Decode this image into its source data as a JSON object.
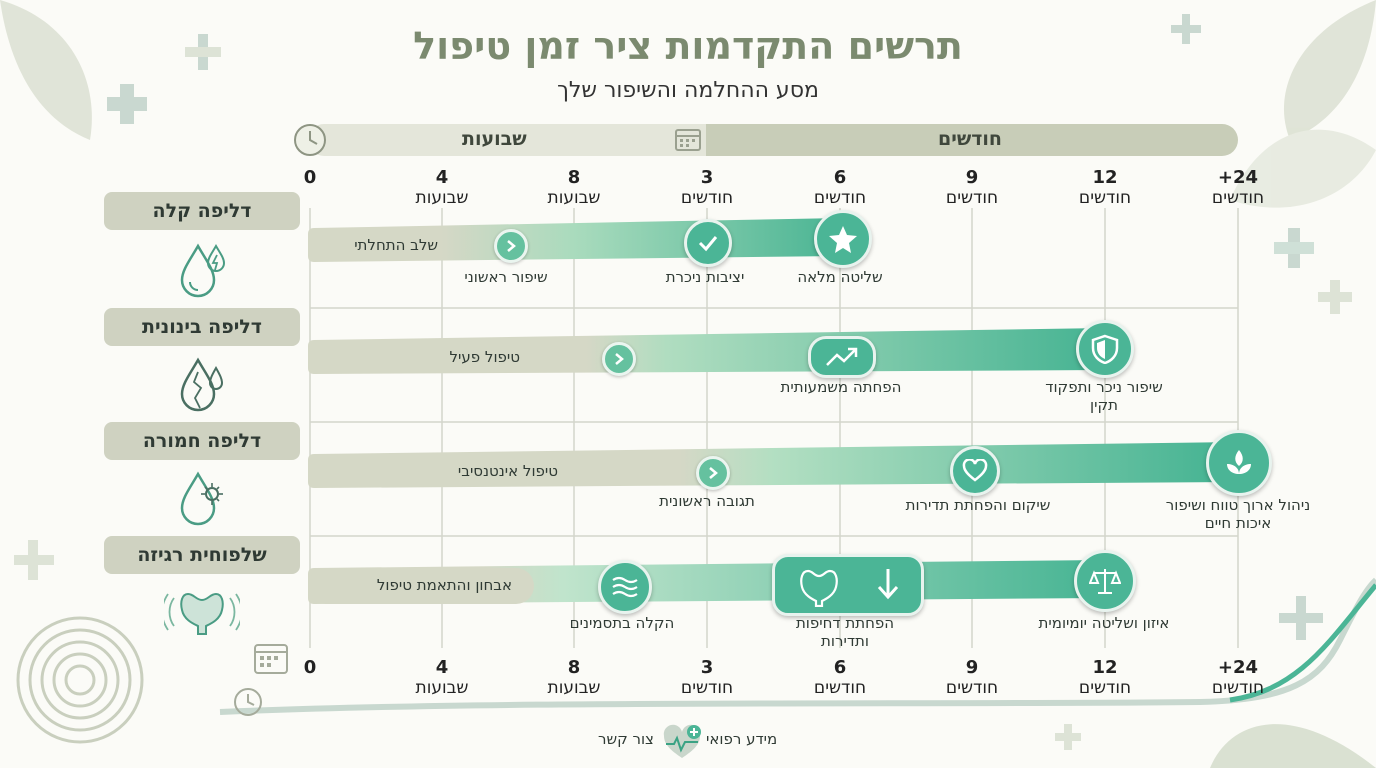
{
  "header": {
    "title": "תרשים התקדמות ציר זמן טיפול",
    "subtitle": "מסע ההחלמה והשיפור שלך"
  },
  "bands": {
    "weeks": "שבועות",
    "months": "חודשים"
  },
  "ticks": [
    {
      "num": "0",
      "unit": ""
    },
    {
      "num": "4",
      "unit": "שבועות"
    },
    {
      "num": "8",
      "unit": "שבועות"
    },
    {
      "num": "3",
      "unit": "חודשים"
    },
    {
      "num": "6",
      "unit": "חודשים"
    },
    {
      "num": "9",
      "unit": "חודשים"
    },
    {
      "num": "12",
      "unit": "חודשים"
    },
    {
      "num": "24+",
      "unit": "חודשים"
    }
  ],
  "rows": [
    {
      "category": "דליפה קלה",
      "bar_label": "שלב התחלתי",
      "milestones": [
        "שיפור ראשוני",
        "יציבות ניכרת",
        "שליטה מלאה"
      ]
    },
    {
      "category": "דליפה בינונית",
      "bar_label": "טיפול פעיל",
      "milestones": [
        "הפחתה משמעותית",
        "שיפור ניכר ותפקוד תקין"
      ]
    },
    {
      "category": "דליפה חמורה",
      "bar_label": "טיפול אינטנסיבי",
      "milestones": [
        "תגובה ראשונית",
        "שיקום והפחתת תדירות",
        "ניהול ארוך טווח ושיפור איכות חיים"
      ]
    },
    {
      "category": "שלפוחית רגיזה",
      "bar_label": "אבחון והתאמת טיפול",
      "milestones": [
        "הקלה בתסמינים",
        "הפחתת דחיפות ותדירות",
        "איזון ושליטה יומיומית"
      ]
    }
  ],
  "footer": {
    "medical_info": "מידע רפואי",
    "contact": "צור קשר"
  },
  "colors": {
    "accent": "#4bb596",
    "accent_light": "#8fd4b6",
    "sage": "#7b8a6f",
    "track": "#d6d9c8",
    "band_light": "#e4e6da",
    "band_dark": "#c8cdb8"
  },
  "icons": [
    "clock-icon",
    "calendar-icon",
    "water-drop-icon",
    "cracked-drop-icon",
    "drop-virus-icon",
    "bladder-icon",
    "checkmark-icon",
    "star-icon",
    "trend-up-icon",
    "shield-icon",
    "heart-icon",
    "leaves-icon",
    "waves-icon",
    "bladder-down-icon",
    "scales-icon",
    "heart-plus-logo-icon"
  ]
}
